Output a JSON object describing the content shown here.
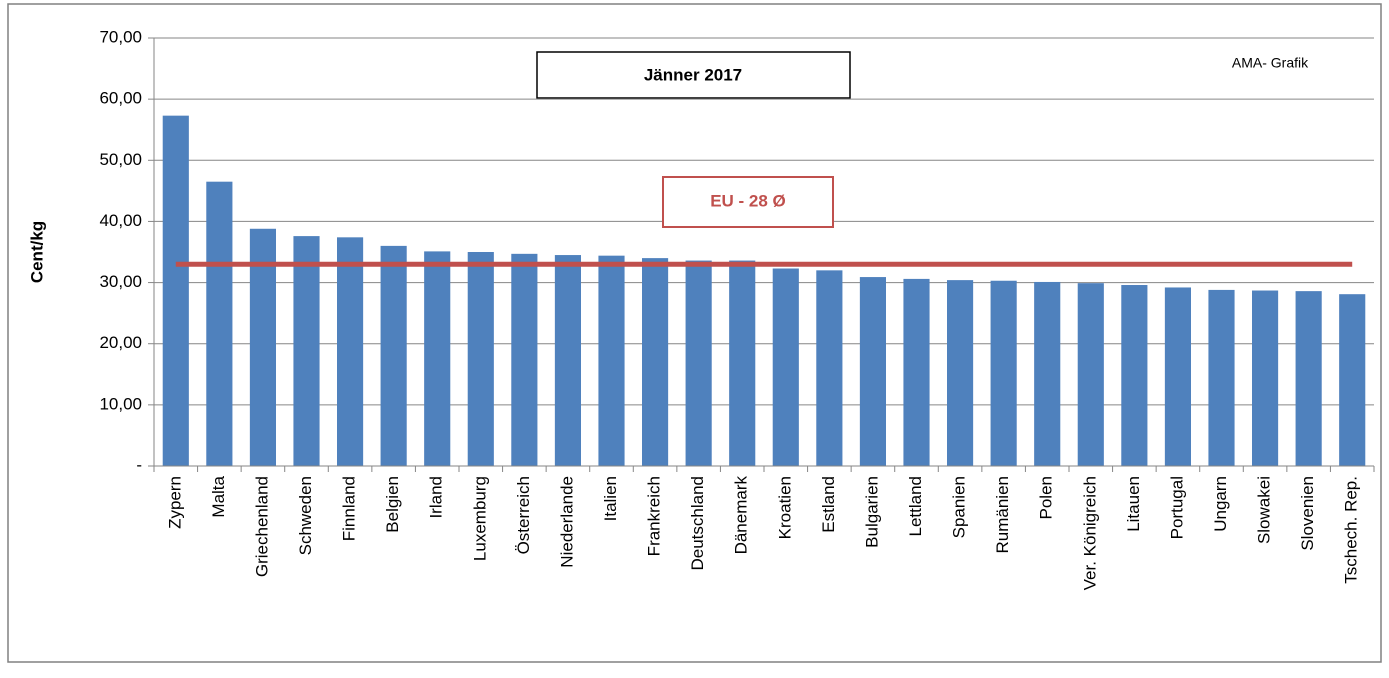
{
  "chart_data": {
    "type": "bar",
    "ylabel": "Cent/kg",
    "annotations": {
      "period": "Jänner 2017",
      "source": "AMA- Grafik"
    },
    "reference_line": {
      "label": "EU - 28 Ø",
      "value": 33.0,
      "color": "#c0504d"
    },
    "categories": [
      "Zypern",
      "Malta",
      "Griechenland",
      "Schweden",
      "Finnland",
      "Belgien",
      "Irland",
      "Luxemburg",
      "Österreich",
      "Niederlande",
      "Italien",
      "Frankreich",
      "Deutschland",
      "Dänemark",
      "Kroatien",
      "Estland",
      "Bulgarien",
      "Lettland",
      "Spanien",
      "Rumänien",
      "Polen",
      "Ver. Königreich",
      "Litauen",
      "Portugal",
      "Ungarn",
      "Slowakei",
      "Slovenien",
      "Tschech. Rep."
    ],
    "values": [
      57.3,
      46.5,
      38.8,
      37.6,
      37.4,
      36.0,
      35.1,
      35.0,
      34.7,
      34.5,
      34.4,
      34.0,
      33.6,
      33.6,
      32.3,
      32.0,
      30.9,
      30.6,
      30.4,
      30.3,
      30.1,
      29.9,
      29.6,
      29.2,
      28.8,
      28.7,
      28.6,
      28.1
    ],
    "color": "#4f81bd",
    "ylim": [
      0,
      70
    ],
    "yticks": [
      {
        "value": 0,
        "label": "-"
      },
      {
        "value": 10,
        "label": "10,00"
      },
      {
        "value": 20,
        "label": "20,00"
      },
      {
        "value": 30,
        "label": "30,00"
      },
      {
        "value": 40,
        "label": "40,00"
      },
      {
        "value": 50,
        "label": "50,00"
      },
      {
        "value": 60,
        "label": "60,00"
      },
      {
        "value": 70,
        "label": "70,00"
      }
    ],
    "grid": true
  }
}
